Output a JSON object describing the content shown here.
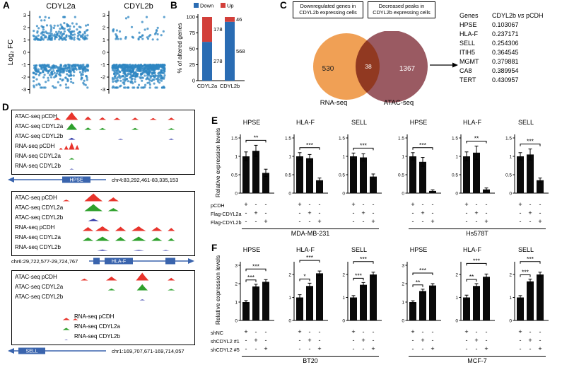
{
  "panelA": {
    "label": "A",
    "type": "scatter",
    "ylabel": "Log₂ FC",
    "yticks": [
      3,
      2,
      1,
      0,
      -1,
      -2,
      -3
    ],
    "ylim": [
      -3,
      3
    ],
    "dot_color": "#2e86c1",
    "plots": [
      {
        "title": "CDYL2a",
        "up": 178,
        "down": 278
      },
      {
        "title": "CDYL2b",
        "up": 46,
        "down": 568
      }
    ]
  },
  "panelB": {
    "label": "B",
    "type": "stacked-bar",
    "ylabel": "% of altered genes",
    "yticks": [
      0,
      25,
      50,
      75,
      100
    ],
    "legend": [
      {
        "name": "Down",
        "color": "#2a6cb3"
      },
      {
        "name": "Up",
        "color": "#d23f3a"
      }
    ],
    "categories": [
      "CDYL2a",
      "CDYL2b"
    ],
    "down": [
      278,
      568
    ],
    "up": [
      178,
      46
    ]
  },
  "panelC": {
    "label": "C",
    "type": "venn",
    "left_caption": "Downregulated genes in CDYL2b expressing cells",
    "right_caption": "Decreased peaks in CDYL2b expressing cells",
    "left_count": "530",
    "overlap_count": "38",
    "right_count": "1367",
    "left_set": "RNA-seq",
    "right_set": "ATAC-seq",
    "left_color": "#f0a055",
    "right_color": "#9a5a62",
    "table": {
      "col1": "Genes",
      "col2": "CDYL2b vs pCDH",
      "rows": [
        [
          "HPSE",
          "0.103067"
        ],
        [
          "HLA-F",
          "0.237171"
        ],
        [
          "SELL",
          "0.254306"
        ],
        [
          "ITIH5",
          "0.364545"
        ],
        [
          "MGMT",
          "0.379881"
        ],
        [
          "CA8",
          "0.389954"
        ],
        [
          "TERT",
          "0.430957"
        ]
      ]
    }
  },
  "panelD": {
    "label": "D",
    "type": "genome-tracks",
    "gene_color": "#3a64ad",
    "blocks": [
      {
        "gene": "HPSE",
        "coords": "chr4:83,292,461-83,335,153",
        "tracks": [
          {
            "label": "ATAC-seq pCDH",
            "color": "#e8342c",
            "peaks": [
              [
                0.25,
                0.02,
                0.3
              ],
              [
                0.33,
                0.035,
                1.0
              ],
              [
                0.42,
                0.02,
                0.45
              ],
              [
                0.5,
                0.02,
                0.35
              ],
              [
                0.58,
                0.02,
                0.3
              ],
              [
                0.68,
                0.02,
                0.3
              ],
              [
                0.78,
                0.02,
                0.25
              ],
              [
                0.88,
                0.02,
                0.3
              ]
            ]
          },
          {
            "label": "ATAC-seq CDYL2a",
            "color": "#2ea02c",
            "peaks": [
              [
                0.33,
                0.03,
                0.85
              ],
              [
                0.42,
                0.02,
                0.3
              ],
              [
                0.5,
                0.02,
                0.25
              ],
              [
                0.68,
                0.02,
                0.25
              ],
              [
                0.88,
                0.02,
                0.22
              ]
            ]
          },
          {
            "label": "ATAC-seq CDYL2b",
            "color": "#3038a8",
            "peaks": [
              [
                0.33,
                0.02,
                0.25
              ],
              [
                0.6,
                0.015,
                0.12
              ],
              [
                0.88,
                0.015,
                0.15
              ]
            ]
          },
          {
            "label": "RNA-seq pCDH",
            "color": "#e8342c",
            "peaks": [
              [
                0.27,
                0.01,
                0.25
              ],
              [
                0.3,
                0.012,
                0.55
              ],
              [
                0.33,
                0.016,
                0.95
              ],
              [
                0.36,
                0.012,
                0.6
              ]
            ]
          },
          {
            "label": "RNA-seq CDYL2a",
            "color": "#2ea02c",
            "peaks": [
              [
                0.33,
                0.015,
                0.22
              ]
            ]
          },
          {
            "label": "RNA-seq CDYL2b",
            "color": "#3038a8",
            "peaks": [
              [
                0.33,
                0.012,
                0.1
              ]
            ]
          }
        ]
      },
      {
        "gene": "HLA-F",
        "coords": "chr6:29,722,577-29,724,767",
        "tracks": [
          {
            "label": "ATAC-seq pCDH",
            "color": "#e8342c",
            "peaks": [
              [
                0.3,
                0.02,
                0.2
              ],
              [
                0.45,
                0.05,
                1.0
              ],
              [
                0.56,
                0.03,
                0.5
              ]
            ]
          },
          {
            "label": "ATAC-seq CDYL2a",
            "color": "#2ea02c",
            "peaks": [
              [
                0.45,
                0.05,
                0.9
              ],
              [
                0.56,
                0.03,
                0.4
              ]
            ]
          },
          {
            "label": "ATAC-seq CDYL2b",
            "color": "#3038a8",
            "peaks": [
              [
                0.45,
                0.03,
                0.3
              ]
            ]
          },
          {
            "label": "RNA-seq pCDH",
            "color": "#e8342c",
            "peaks": [
              [
                0.42,
                0.03,
                0.5
              ],
              [
                0.5,
                0.04,
                0.6
              ],
              [
                0.6,
                0.03,
                0.55
              ],
              [
                0.7,
                0.04,
                0.6
              ],
              [
                0.8,
                0.03,
                0.5
              ],
              [
                0.88,
                0.02,
                0.4
              ]
            ]
          },
          {
            "label": "RNA-seq CDYL2a",
            "color": "#2ea02c",
            "peaks": [
              [
                0.42,
                0.03,
                0.45
              ],
              [
                0.5,
                0.04,
                0.55
              ],
              [
                0.6,
                0.03,
                0.5
              ],
              [
                0.7,
                0.04,
                0.55
              ],
              [
                0.8,
                0.03,
                0.45
              ],
              [
                0.88,
                0.02,
                0.35
              ]
            ]
          },
          {
            "label": "RNA-seq CDYL2b",
            "color": "#3038a8",
            "peaks": [
              [
                0.5,
                0.03,
                0.15
              ],
              [
                0.7,
                0.03,
                0.12
              ],
              [
                0.85,
                0.02,
                0.1
              ]
            ]
          }
        ]
      },
      {
        "gene": "SELL",
        "coords": "chr1:169,707,671-169,714,057",
        "tracks": [
          {
            "label": "ATAC-seq pCDH",
            "color": "#e8342c",
            "peaks": [
              [
                0.4,
                0.02,
                0.25
              ],
              [
                0.55,
                0.03,
                0.5
              ],
              [
                0.72,
                0.035,
                1.0
              ],
              [
                0.88,
                0.02,
                0.35
              ]
            ]
          },
          {
            "label": "ATAC-seq CDYL2a",
            "color": "#2ea02c",
            "peaks": [
              [
                0.55,
                0.02,
                0.25
              ],
              [
                0.72,
                0.03,
                0.8
              ],
              [
                0.88,
                0.02,
                0.2
              ]
            ]
          },
          {
            "label": "ATAC-seq CDYL2b",
            "color": "#3038a8",
            "peaks": [
              [
                0.72,
                0.015,
                0.12
              ]
            ]
          },
          {
            "label": "RNA-seq pCDH",
            "color": "#e8342c",
            "gap": 14,
            "indent": 84,
            "peaks": [
              [
                0.3,
                0.02,
                0.3
              ],
              [
                0.35,
                0.015,
                0.2
              ]
            ]
          },
          {
            "label": "RNA-seq CDYL2a",
            "color": "#2ea02c",
            "indent": 84,
            "peaks": [
              [
                0.3,
                0.02,
                0.28
              ]
            ]
          },
          {
            "label": "RNA-seq CDYL2b",
            "color": "#3038a8",
            "indent": 84,
            "peaks": [
              [
                0.3,
                0.01,
                0.08
              ]
            ]
          }
        ]
      }
    ]
  },
  "panelE": {
    "label": "E",
    "type": "bar",
    "ylabel": "Relative expression levels",
    "bar_color": "#0a0a0a",
    "conditions": [
      {
        "name": "pCDH",
        "signs": [
          "+",
          "-",
          "-"
        ]
      },
      {
        "name": "Flag-CDYL2a",
        "signs": [
          "-",
          "+",
          "-"
        ]
      },
      {
        "name": "Flag-CDYL2b",
        "signs": [
          "-",
          "-",
          "+"
        ]
      }
    ],
    "groups": [
      {
        "cell_line": "MDA-MB-231",
        "charts": [
          {
            "gene": "HPSE",
            "ylim": [
              0,
              1.5
            ],
            "yticks": [
              0,
              0.5,
              1,
              1.5
            ],
            "values": [
              1,
              1.15,
              0.55
            ],
            "errors": [
              0.12,
              0.15,
              0.1
            ],
            "sig": [
              {
                "a": 0,
                "b": 2,
                "stars": "**",
                "row": 0
              }
            ]
          },
          {
            "gene": "HLA-F",
            "ylim": [
              0,
              1.5
            ],
            "yticks": [
              0,
              0.5,
              1,
              1.5
            ],
            "values": [
              1,
              0.95,
              0.35
            ],
            "errors": [
              0.1,
              0.1,
              0.06
            ],
            "sig": [
              {
                "a": 0,
                "b": 2,
                "stars": "***",
                "row": 0
              }
            ]
          },
          {
            "gene": "SELL",
            "ylim": [
              0,
              1.5
            ],
            "yticks": [
              0,
              0.5,
              1,
              1.5
            ],
            "values": [
              1,
              0.97,
              0.45
            ],
            "errors": [
              0.09,
              0.1,
              0.07
            ],
            "sig": [
              {
                "a": 0,
                "b": 2,
                "stars": "***",
                "row": 0
              }
            ]
          }
        ]
      },
      {
        "cell_line": "Hs578T",
        "charts": [
          {
            "gene": "HPSE",
            "ylim": [
              0,
              1.5
            ],
            "yticks": [
              0,
              0.5,
              1,
              1.5
            ],
            "values": [
              1,
              0.85,
              0.06
            ],
            "errors": [
              0.1,
              0.12,
              0.03
            ],
            "sig": [
              {
                "a": 0,
                "b": 2,
                "stars": "***",
                "row": 0
              }
            ]
          },
          {
            "gene": "HLA-F",
            "ylim": [
              0,
              1.5
            ],
            "yticks": [
              0,
              0.5,
              1,
              1.5
            ],
            "values": [
              1,
              1.1,
              0.1
            ],
            "errors": [
              0.12,
              0.18,
              0.04
            ],
            "sig": [
              {
                "a": 0,
                "b": 2,
                "stars": "**",
                "row": 0
              }
            ]
          },
          {
            "gene": "SELL",
            "ylim": [
              0,
              1.5
            ],
            "yticks": [
              0,
              0.5,
              1,
              1.5
            ],
            "values": [
              1,
              1.05,
              0.35
            ],
            "errors": [
              0.1,
              0.15,
              0.06
            ],
            "sig": [
              {
                "a": 0,
                "b": 2,
                "stars": "***",
                "row": 0
              }
            ]
          }
        ]
      }
    ]
  },
  "panelF": {
    "label": "F",
    "type": "bar",
    "ylabel": "Relative expression levels",
    "bar_color": "#0a0a0a",
    "conditions": [
      {
        "name": "shNC",
        "signs": [
          "+",
          "-",
          "-"
        ]
      },
      {
        "name": "shCDYL2 #1",
        "signs": [
          "-",
          "+",
          "-"
        ]
      },
      {
        "name": "shCDYL2 #5",
        "signs": [
          "-",
          "-",
          "+"
        ]
      }
    ],
    "groups": [
      {
        "cell_line": "BT20",
        "charts": [
          {
            "gene": "HPSE",
            "ylim": [
              0,
              3
            ],
            "yticks": [
              0,
              1,
              2,
              3
            ],
            "values": [
              1,
              1.85,
              2.1
            ],
            "errors": [
              0.08,
              0.12,
              0.12
            ],
            "sig": [
              {
                "a": 0,
                "b": 1,
                "stars": "***",
                "row": 1
              },
              {
                "a": 0,
                "b": 2,
                "stars": "***",
                "row": 0
              }
            ]
          },
          {
            "gene": "HLA-F",
            "ylim": [
              0,
              2.4
            ],
            "yticks": [
              0,
              1,
              2
            ],
            "values": [
              1,
              1.5,
              2.05
            ],
            "errors": [
              0.12,
              0.12,
              0.1
            ],
            "sig": [
              {
                "a": 0,
                "b": 1,
                "stars": "*",
                "row": 1
              },
              {
                "a": 0,
                "b": 2,
                "stars": "***",
                "row": 0
              }
            ]
          },
          {
            "gene": "SELL",
            "ylim": [
              0,
              2.4
            ],
            "yticks": [
              0,
              1,
              2
            ],
            "values": [
              1,
              1.55,
              2.0
            ],
            "errors": [
              0.08,
              0.1,
              0.1
            ],
            "sig": [
              {
                "a": 0,
                "b": 1,
                "stars": "***",
                "row": 1
              },
              {
                "a": 0,
                "b": 2,
                "stars": "***",
                "row": 0
              }
            ]
          }
        ]
      },
      {
        "cell_line": "MCF-7",
        "charts": [
          {
            "gene": "HPSE",
            "ylim": [
              0,
              3
            ],
            "yticks": [
              0,
              1,
              2,
              3
            ],
            "values": [
              1,
              1.6,
              1.9
            ],
            "errors": [
              0.07,
              0.1,
              0.1
            ],
            "sig": [
              {
                "a": 0,
                "b": 1,
                "stars": "**",
                "row": 1
              },
              {
                "a": 0,
                "b": 2,
                "stars": "***",
                "row": 0
              }
            ]
          },
          {
            "gene": "HLA-F",
            "ylim": [
              0,
              2.4
            ],
            "yticks": [
              0,
              1,
              2
            ],
            "values": [
              1,
              1.5,
              1.9
            ],
            "errors": [
              0.1,
              0.1,
              0.12
            ],
            "sig": [
              {
                "a": 0,
                "b": 1,
                "stars": "**",
                "row": 1
              },
              {
                "a": 0,
                "b": 2,
                "stars": "***",
                "row": 0
              }
            ]
          },
          {
            "gene": "SELL",
            "ylim": [
              0,
              2.4
            ],
            "yticks": [
              0,
              1,
              2
            ],
            "values": [
              1,
              1.7,
              2.0
            ],
            "errors": [
              0.08,
              0.1,
              0.1
            ],
            "sig": [
              {
                "a": 0,
                "b": 1,
                "stars": "***",
                "row": 1
              },
              {
                "a": 0,
                "b": 2,
                "stars": "***",
                "row": 0
              }
            ]
          }
        ]
      }
    ]
  }
}
